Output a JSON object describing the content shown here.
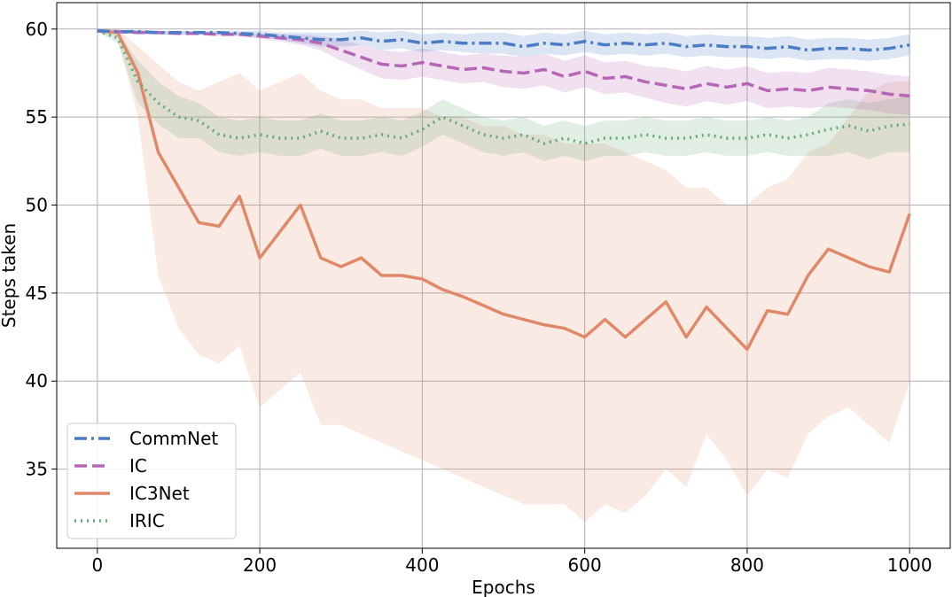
{
  "chart_data": {
    "type": "line",
    "title": "",
    "xlabel": "Epochs",
    "ylabel": "Steps taken",
    "xlim": [
      -50,
      1050
    ],
    "ylim": [
      30.5,
      61.5
    ],
    "x_ticks": [
      0,
      200,
      400,
      600,
      800,
      1000
    ],
    "y_ticks": [
      35,
      40,
      45,
      50,
      55,
      60
    ],
    "x_tick_labels": [
      "0",
      "200",
      "400",
      "600",
      "800",
      "1000"
    ],
    "y_tick_labels": [
      "35",
      "40",
      "45",
      "50",
      "55",
      "60"
    ],
    "grid": true,
    "legend_position": "bottom-left",
    "x": [
      0,
      25,
      50,
      75,
      100,
      125,
      150,
      175,
      200,
      225,
      250,
      275,
      300,
      325,
      350,
      375,
      400,
      425,
      450,
      475,
      500,
      525,
      550,
      575,
      600,
      625,
      650,
      675,
      700,
      725,
      750,
      775,
      800,
      825,
      850,
      875,
      900,
      925,
      950,
      975,
      1000
    ],
    "series": [
      {
        "name": "CommNet",
        "color": "#4c7cc4",
        "dash": "dashdot",
        "values": [
          59.9,
          59.85,
          59.85,
          59.8,
          59.8,
          59.8,
          59.8,
          59.75,
          59.7,
          59.6,
          59.5,
          59.4,
          59.4,
          59.5,
          59.3,
          59.4,
          59.2,
          59.3,
          59.2,
          59.2,
          59.2,
          59.0,
          59.2,
          59.1,
          59.3,
          59.1,
          59.2,
          59.1,
          59.2,
          59.0,
          59.1,
          59.0,
          59.0,
          58.9,
          59.0,
          58.8,
          58.9,
          58.9,
          58.8,
          58.9,
          59.1
        ],
        "upper": [
          59.95,
          59.95,
          59.95,
          59.9,
          59.9,
          59.9,
          59.9,
          59.9,
          59.9,
          59.8,
          59.8,
          59.8,
          59.8,
          59.9,
          59.8,
          59.9,
          59.7,
          59.8,
          59.7,
          59.8,
          59.8,
          59.6,
          59.8,
          59.7,
          59.9,
          59.7,
          59.8,
          59.7,
          59.8,
          59.6,
          59.7,
          59.6,
          59.6,
          59.5,
          59.6,
          59.4,
          59.5,
          59.5,
          59.4,
          59.5,
          59.7
        ],
        "lower": [
          59.85,
          59.75,
          59.75,
          59.7,
          59.7,
          59.7,
          59.7,
          59.6,
          59.5,
          59.4,
          59.2,
          59.0,
          59.0,
          59.1,
          58.8,
          58.9,
          58.7,
          58.8,
          58.7,
          58.6,
          58.6,
          58.4,
          58.6,
          58.5,
          58.7,
          58.5,
          58.6,
          58.5,
          58.6,
          58.4,
          58.5,
          58.4,
          58.4,
          58.3,
          58.4,
          58.2,
          58.3,
          58.3,
          58.2,
          58.3,
          58.5
        ]
      },
      {
        "name": "IC",
        "color": "#b566b5",
        "dash": "dashed",
        "values": [
          59.9,
          59.85,
          59.8,
          59.8,
          59.75,
          59.75,
          59.7,
          59.7,
          59.6,
          59.5,
          59.4,
          59.2,
          58.8,
          58.4,
          58.0,
          57.9,
          58.1,
          57.9,
          57.7,
          57.8,
          57.6,
          57.5,
          57.7,
          57.3,
          57.6,
          57.2,
          57.3,
          57.0,
          56.8,
          56.6,
          56.9,
          56.7,
          56.9,
          56.5,
          56.6,
          56.5,
          56.7,
          56.6,
          56.5,
          56.3,
          56.2
        ],
        "upper": [
          59.95,
          59.95,
          59.9,
          59.9,
          59.85,
          59.85,
          59.8,
          59.8,
          59.75,
          59.7,
          59.7,
          59.6,
          59.4,
          59.1,
          58.8,
          58.7,
          58.9,
          58.7,
          58.5,
          58.6,
          58.5,
          58.4,
          58.6,
          58.2,
          58.5,
          58.1,
          58.2,
          57.9,
          57.8,
          57.6,
          57.9,
          57.7,
          57.9,
          57.5,
          57.6,
          57.5,
          57.8,
          57.7,
          57.6,
          57.4,
          57.3
        ],
        "lower": [
          59.85,
          59.75,
          59.7,
          59.7,
          59.65,
          59.65,
          59.6,
          59.6,
          59.45,
          59.3,
          59.1,
          58.8,
          58.2,
          57.7,
          57.2,
          57.1,
          57.3,
          57.1,
          56.9,
          57.0,
          56.7,
          56.6,
          56.8,
          56.4,
          56.7,
          56.3,
          56.4,
          56.1,
          55.8,
          55.6,
          55.9,
          55.7,
          55.9,
          55.5,
          55.6,
          55.5,
          55.6,
          55.5,
          55.4,
          55.2,
          55.1
        ]
      },
      {
        "name": "IC3Net",
        "color": "#e0896a",
        "dash": "solid",
        "values": [
          59.9,
          59.8,
          57.5,
          53.0,
          51.0,
          49.0,
          48.8,
          50.5,
          47.0,
          48.5,
          50.0,
          47.0,
          46.5,
          47.0,
          46.0,
          46.0,
          45.8,
          45.2,
          44.8,
          44.3,
          43.8,
          43.5,
          43.2,
          43.0,
          42.5,
          43.5,
          42.5,
          43.5,
          44.5,
          42.5,
          44.2,
          43.0,
          41.8,
          44.0,
          43.8,
          46.0,
          47.5,
          47.0,
          46.5,
          46.2,
          49.5
        ],
        "upper": [
          60.0,
          60.0,
          59.0,
          58.0,
          57.0,
          56.5,
          57.0,
          57.5,
          56.5,
          57.0,
          57.5,
          56.5,
          56.0,
          56.0,
          55.5,
          55.5,
          55.5,
          55.0,
          55.0,
          54.5,
          54.5,
          54.0,
          54.0,
          53.5,
          53.5,
          53.5,
          53.0,
          52.5,
          52.0,
          51.0,
          51.0,
          50.0,
          50.0,
          51.0,
          51.5,
          53.0,
          53.5,
          55.0,
          56.5,
          57.0,
          57.0
        ],
        "lower": [
          59.8,
          59.5,
          55.0,
          46.0,
          43.0,
          41.5,
          41.0,
          42.0,
          38.5,
          39.5,
          40.5,
          37.5,
          37.5,
          37.0,
          36.5,
          36.0,
          35.5,
          35.0,
          34.5,
          34.0,
          33.5,
          33.0,
          33.0,
          33.0,
          32.0,
          33.0,
          32.5,
          33.5,
          35.0,
          34.0,
          37.0,
          35.5,
          33.5,
          35.0,
          34.5,
          37.0,
          38.0,
          38.5,
          37.5,
          36.5,
          40.0
        ]
      },
      {
        "name": "IRIC",
        "color": "#6aa87a",
        "dash": "dotted",
        "values": [
          59.9,
          59.5,
          57.0,
          55.8,
          55.0,
          54.8,
          54.0,
          53.8,
          54.0,
          53.8,
          53.8,
          54.2,
          53.8,
          53.8,
          54.0,
          53.8,
          54.3,
          55.0,
          54.5,
          54.0,
          53.8,
          54.0,
          53.5,
          53.8,
          53.5,
          53.8,
          53.8,
          54.0,
          53.8,
          53.8,
          54.0,
          53.8,
          53.8,
          54.0,
          53.8,
          54.0,
          54.3,
          54.5,
          54.2,
          54.5,
          54.6
        ],
        "upper": [
          59.95,
          59.8,
          58.2,
          57.0,
          56.2,
          55.8,
          55.0,
          54.8,
          55.0,
          54.8,
          54.8,
          55.2,
          54.8,
          54.8,
          55.0,
          54.8,
          55.3,
          56.0,
          55.5,
          55.0,
          54.8,
          55.0,
          54.5,
          54.8,
          54.5,
          54.8,
          54.8,
          55.0,
          54.8,
          54.8,
          55.0,
          54.8,
          54.8,
          55.0,
          54.8,
          55.0,
          55.8,
          56.0,
          55.8,
          56.0,
          56.2
        ],
        "lower": [
          59.85,
          59.2,
          55.8,
          54.6,
          53.8,
          53.8,
          53.0,
          52.8,
          53.0,
          52.8,
          52.8,
          53.2,
          52.8,
          52.8,
          53.0,
          52.8,
          53.3,
          54.0,
          53.5,
          53.0,
          52.8,
          53.0,
          52.5,
          52.8,
          52.5,
          52.8,
          52.8,
          53.0,
          52.8,
          52.8,
          53.0,
          52.8,
          52.8,
          53.0,
          52.8,
          52.8,
          52.8,
          53.0,
          52.6,
          53.0,
          53.0
        ]
      }
    ]
  }
}
